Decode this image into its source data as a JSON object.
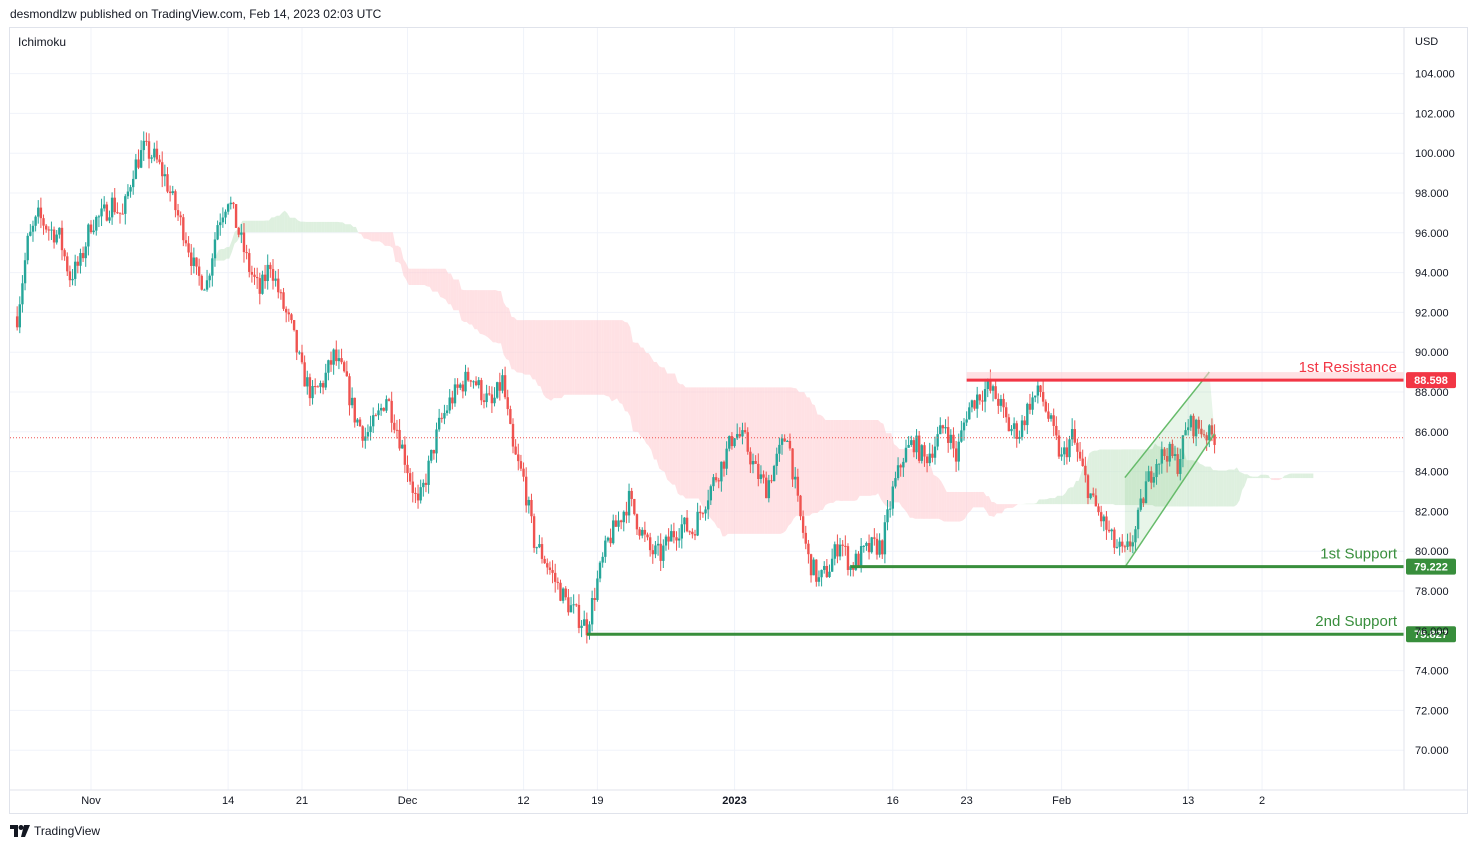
{
  "header": {
    "publisher": "desmondlzw published on TradingView.com, Feb 14, 2023 02:03 UTC"
  },
  "footer": {
    "brand": "TradingView",
    "logo_icon": "tradingview-logo-icon"
  },
  "chart_data": {
    "type": "candlestick",
    "indicator": "Ichimoku",
    "currency": "USD",
    "y_range": [
      68.0,
      106.0
    ],
    "y_ticks": [
      "104.000",
      "102.000",
      "100.000",
      "98.000",
      "96.000",
      "94.000",
      "92.000",
      "90.000",
      "88.000",
      "86.000",
      "84.000",
      "82.000",
      "80.000",
      "78.000",
      "76.000",
      "74.000",
      "72.000",
      "70.000"
    ],
    "x_ticks": [
      {
        "label": "Nov",
        "day": 0
      },
      {
        "label": "14",
        "day": 13
      },
      {
        "label": "21",
        "day": 20
      },
      {
        "label": "Dec",
        "day": 30
      },
      {
        "label": "12",
        "day": 41
      },
      {
        "label": "19",
        "day": 48
      },
      {
        "label": "2023",
        "day": 61,
        "bold": true
      },
      {
        "label": "16",
        "day": 76
      },
      {
        "label": "23",
        "day": 83
      },
      {
        "label": "Feb",
        "day": 92
      },
      {
        "label": "13",
        "day": 104
      },
      {
        "label": "2",
        "day": 111
      }
    ],
    "x_range_days": [
      -7,
      111.5
    ],
    "close_points": [
      [
        -7,
        91.8
      ],
      [
        -6,
        95.5
      ],
      [
        -5,
        96.8
      ],
      [
        -4,
        96.2
      ],
      [
        -3,
        95.8
      ],
      [
        -2,
        93.8
      ],
      [
        -1,
        94.5
      ],
      [
        0,
        96.5
      ],
      [
        1,
        96.8
      ],
      [
        2,
        97.5
      ],
      [
        3,
        96.8
      ],
      [
        4,
        99.2
      ],
      [
        5,
        100.2
      ],
      [
        6,
        99.8
      ],
      [
        7,
        98.8
      ],
      [
        8,
        97.2
      ],
      [
        9,
        95.8
      ],
      [
        10,
        93.8
      ],
      [
        11,
        93.5
      ],
      [
        12,
        96.5
      ],
      [
        13,
        97.8
      ],
      [
        14,
        96.0
      ],
      [
        15,
        94.2
      ],
      [
        16,
        93.0
      ],
      [
        17,
        94.5
      ],
      [
        18,
        92.6
      ],
      [
        19,
        91.2
      ],
      [
        20,
        89.0
      ],
      [
        21,
        87.8
      ],
      [
        22,
        88.5
      ],
      [
        23,
        89.8
      ],
      [
        24,
        88.8
      ],
      [
        25,
        86.8
      ],
      [
        26,
        85.8
      ],
      [
        27,
        86.5
      ],
      [
        28,
        87.8
      ],
      [
        29,
        86.2
      ],
      [
        30,
        84.2
      ],
      [
        31,
        82.2
      ],
      [
        32,
        84.2
      ],
      [
        33,
        86.3
      ],
      [
        34,
        87.5
      ],
      [
        35,
        88.3
      ],
      [
        36,
        88.9
      ],
      [
        37,
        88.0
      ],
      [
        38,
        87.3
      ],
      [
        39,
        88.6
      ],
      [
        40,
        85.0
      ],
      [
        41,
        83.6
      ],
      [
        42,
        80.5
      ],
      [
        43,
        79.6
      ],
      [
        44,
        78.5
      ],
      [
        45,
        77.5
      ],
      [
        46,
        76.8
      ],
      [
        47,
        76.2
      ],
      [
        48,
        78.5
      ],
      [
        49,
        80.5
      ],
      [
        50,
        81.5
      ],
      [
        51,
        82.6
      ],
      [
        52,
        81.2
      ],
      [
        53,
        80.0
      ],
      [
        54,
        79.8
      ],
      [
        55,
        80.8
      ],
      [
        56,
        81.3
      ],
      [
        57,
        81.0
      ],
      [
        58,
        82.3
      ],
      [
        59,
        83.5
      ],
      [
        60,
        84.6
      ],
      [
        61,
        86.0
      ],
      [
        62,
        85.5
      ],
      [
        63,
        84.0
      ],
      [
        64,
        83.2
      ],
      [
        65,
        84.6
      ],
      [
        66,
        86.0
      ],
      [
        67,
        82.3
      ],
      [
        68,
        79.6
      ],
      [
        69,
        78.5
      ],
      [
        70,
        79.2
      ],
      [
        71,
        80.6
      ],
      [
        72,
        79.2
      ],
      [
        73,
        79.8
      ],
      [
        74,
        80.2
      ],
      [
        75,
        80.3
      ],
      [
        76,
        83.0
      ],
      [
        77,
        84.8
      ],
      [
        78,
        85.5
      ],
      [
        79,
        84.6
      ],
      [
        80,
        85.4
      ],
      [
        81,
        86.4
      ],
      [
        82,
        84.7
      ],
      [
        83,
        87.0
      ],
      [
        84,
        87.8
      ],
      [
        85,
        88.2
      ],
      [
        86,
        87.6
      ],
      [
        87,
        86.2
      ],
      [
        88,
        86.0
      ],
      [
        89,
        87.5
      ],
      [
        90,
        88.0
      ],
      [
        91,
        86.3
      ],
      [
        92,
        84.6
      ],
      [
        93,
        85.8
      ],
      [
        94,
        84.0
      ],
      [
        95,
        82.4
      ],
      [
        96,
        81.4
      ],
      [
        97,
        80.3
      ],
      [
        98,
        79.8
      ],
      [
        99,
        81.0
      ],
      [
        100,
        83.3
      ],
      [
        101,
        84.6
      ],
      [
        102,
        85.0
      ],
      [
        103,
        84.4
      ],
      [
        104,
        86.4
      ],
      [
        105,
        86.2
      ],
      [
        106,
        85.8
      ]
    ],
    "levels": [
      {
        "name": "1st Resistance",
        "value": "88.598",
        "color": "#f23645",
        "start_day": 83
      },
      {
        "name": "1st Support",
        "value": "79.222",
        "color": "#388e3c",
        "start_day": 72
      },
      {
        "name": "2nd Support",
        "value": "75.827",
        "color": "#388e3c",
        "start_day": 47
      }
    ],
    "last_price": 85.7,
    "channel": {
      "lower": [
        [
          98,
          79.2
        ],
        [
          106.5,
          85.9
        ]
      ],
      "upper": [
        [
          98,
          83.7
        ],
        [
          106,
          89.0
        ]
      ],
      "color": "#66bb6a"
    },
    "colors": {
      "up": "#26a69a",
      "down": "#ef5350",
      "cloud_green": "#c8e6c9",
      "cloud_red": "#ffcdd2"
    }
  }
}
